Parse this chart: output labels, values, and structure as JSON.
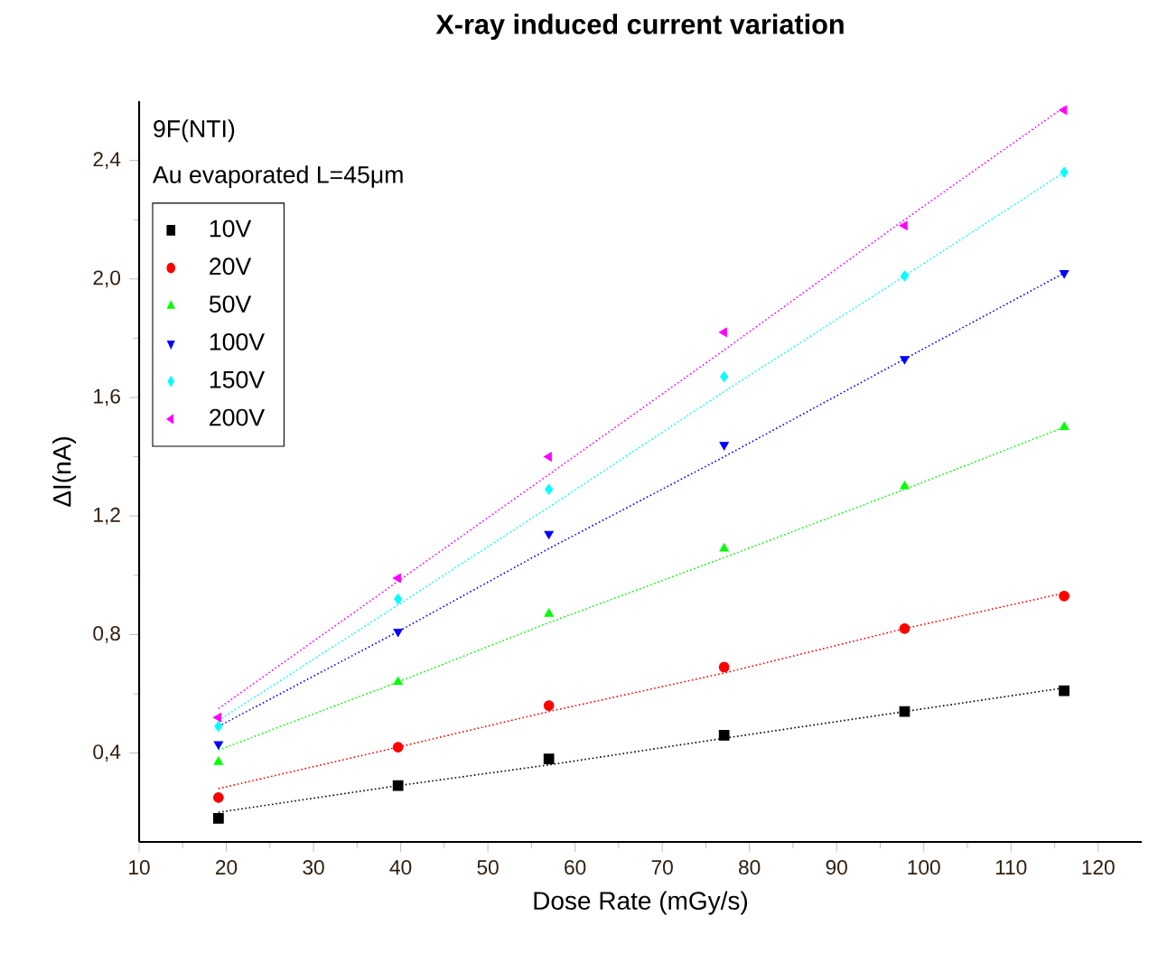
{
  "chart_data": {
    "type": "scatter",
    "title": "X-ray induced current variation",
    "xlabel": "Dose Rate (mGy/s)",
    "ylabel": "ΔI(nA)",
    "annotations": [
      "9F(NTI)",
      "Au evaporated L=45μm"
    ],
    "x": [
      19.1,
      39.7,
      57.0,
      77.1,
      97.8,
      116.1
    ],
    "xlim": [
      10,
      125
    ],
    "xticks": [
      10,
      20,
      30,
      40,
      50,
      60,
      70,
      80,
      90,
      100,
      110,
      120
    ],
    "ylim": [
      0.1,
      2.6
    ],
    "yticks": [
      {
        "value": 0.4,
        "label": "0,4"
      },
      {
        "value": 0.8,
        "label": "0,8"
      },
      {
        "value": 1.2,
        "label": "1,2"
      },
      {
        "value": 1.6,
        "label": "1,6"
      },
      {
        "value": 2.0,
        "label": "2,0"
      },
      {
        "value": 2.4,
        "label": "2,4"
      }
    ],
    "legend": "top left",
    "series": [
      {
        "name": "10V",
        "color": "#000000",
        "marker": "square",
        "values": [
          0.18,
          0.29,
          0.38,
          0.46,
          0.54,
          0.61
        ]
      },
      {
        "name": "20V",
        "color": "#ff0000",
        "marker": "circle",
        "values": [
          0.25,
          0.42,
          0.56,
          0.69,
          0.82,
          0.93
        ]
      },
      {
        "name": "50V",
        "color": "#00ff00",
        "marker": "triangle",
        "values": [
          0.37,
          0.64,
          0.87,
          1.09,
          1.3,
          1.5
        ]
      },
      {
        "name": "100V",
        "color": "#0000ff",
        "marker": "triangle-down",
        "values": [
          0.43,
          0.81,
          1.14,
          1.44,
          1.73,
          2.02
        ]
      },
      {
        "name": "150V",
        "color": "#00ffff",
        "marker": "diamond",
        "values": [
          0.49,
          0.92,
          1.29,
          1.67,
          2.01,
          2.36
        ]
      },
      {
        "name": "200V",
        "color": "#ff00ff",
        "marker": "triangle-left",
        "values": [
          0.52,
          0.99,
          1.4,
          1.82,
          2.18,
          2.57
        ]
      },
      {
        "type": "line",
        "line_style": "dotted",
        "marker": "none",
        "color": "#000000",
        "values": [
          0.2,
          0.29,
          0.36,
          0.45,
          0.54,
          0.62
        ]
      },
      {
        "type": "line",
        "line_style": "dotted",
        "marker": "none",
        "color": "#ff0000",
        "values": [
          0.28,
          0.42,
          0.54,
          0.67,
          0.82,
          0.94
        ]
      },
      {
        "type": "line",
        "line_style": "dotted",
        "marker": "none",
        "color": "#00ff00",
        "values": [
          0.41,
          0.64,
          0.84,
          1.06,
          1.29,
          1.5
        ]
      },
      {
        "type": "line",
        "line_style": "dotted",
        "marker": "none",
        "color": "#0000ff",
        "values": [
          0.49,
          0.81,
          1.09,
          1.4,
          1.73,
          2.02
        ]
      },
      {
        "type": "line",
        "line_style": "dotted",
        "marker": "none",
        "color": "#00ffff",
        "values": [
          0.51,
          0.9,
          1.23,
          1.62,
          2.01,
          2.36
        ]
      },
      {
        "type": "line",
        "line_style": "dotted",
        "marker": "none",
        "color": "#ff00ff",
        "values": [
          0.55,
          0.98,
          1.34,
          1.76,
          2.2,
          2.58
        ]
      }
    ]
  }
}
